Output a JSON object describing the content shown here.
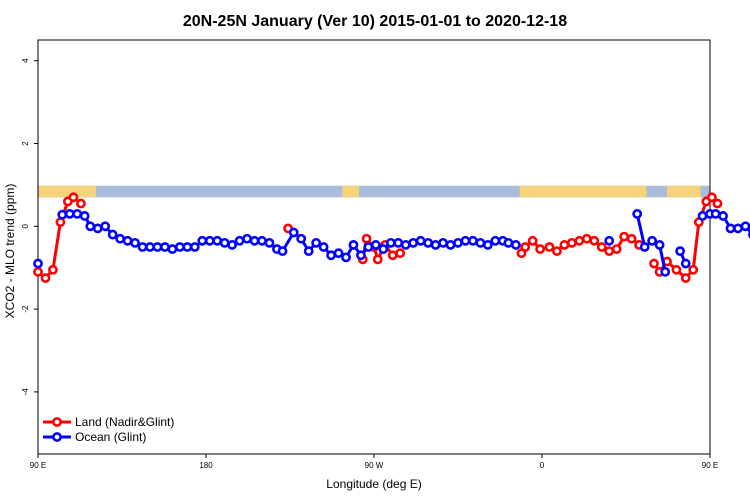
{
  "chart_data": {
    "type": "line",
    "title": "20N-25N January (Ver 10)   2015-01-01 to 2020-12-18",
    "xlabel": "Longitude (deg E)",
    "ylabel": "XCO2 - MLO trend (ppm)",
    "xlim": [
      90,
      450
    ],
    "ylim": [
      -5.5,
      4.5
    ],
    "x_ticks": [
      {
        "value": 90,
        "label": "90 E"
      },
      {
        "value": 180,
        "label": "180"
      },
      {
        "value": 270,
        "label": "90 W"
      },
      {
        "value": 360,
        "label": "0"
      },
      {
        "value": 450,
        "label": "90 E"
      },
      {
        "value": 540,
        "label": "180"
      }
    ],
    "y_ticks": [
      {
        "value": -4,
        "label": "-4"
      },
      {
        "value": -2,
        "label": "-2"
      },
      {
        "value": 0,
        "label": "0"
      },
      {
        "value": 2,
        "label": "2"
      },
      {
        "value": 4,
        "label": "4"
      }
    ],
    "land_mask": {
      "y_range": [
        0.7,
        0.98
      ],
      "ocean_color": "#a9bcd9",
      "land_color": "#f5d37a",
      "land_intervals": [
        [
          90,
          121
        ],
        [
          253,
          262
        ],
        [
          348,
          416
        ],
        [
          427,
          445
        ],
        [
          452,
          497
        ]
      ]
    },
    "legend": {
      "position": "bottom-left",
      "entries": [
        "Land (Nadir&Glint)",
        "Ocean (Glint)"
      ]
    },
    "series": [
      {
        "name": "Land (Nadir&Glint)",
        "color": "#ff0000",
        "segments": [
          [
            {
              "x": 90,
              "y": -1.1
            },
            {
              "x": 94,
              "y": -1.25
            },
            {
              "x": 98,
              "y": -1.05
            },
            {
              "x": 102,
              "y": 0.1
            },
            {
              "x": 106,
              "y": 0.6
            },
            {
              "x": 109,
              "y": 0.7
            },
            {
              "x": 113,
              "y": 0.55
            }
          ],
          [
            {
              "x": 224,
              "y": -0.05
            }
          ],
          [
            {
              "x": 264,
              "y": -0.8
            },
            {
              "x": 266,
              "y": -0.3
            },
            {
              "x": 270,
              "y": -0.5
            },
            {
              "x": 272,
              "y": -0.8
            },
            {
              "x": 276,
              "y": -0.45
            },
            {
              "x": 280,
              "y": -0.7
            },
            {
              "x": 284,
              "y": -0.65
            }
          ],
          [
            {
              "x": 349,
              "y": -0.65
            },
            {
              "x": 351,
              "y": -0.5
            },
            {
              "x": 355,
              "y": -0.35
            },
            {
              "x": 359,
              "y": -0.55
            },
            {
              "x": 364,
              "y": -0.5
            },
            {
              "x": 368,
              "y": -0.6
            },
            {
              "x": 372,
              "y": -0.45
            },
            {
              "x": 376,
              "y": -0.4
            },
            {
              "x": 380,
              "y": -0.35
            },
            {
              "x": 384,
              "y": -0.3
            },
            {
              "x": 388,
              "y": -0.35
            },
            {
              "x": 392,
              "y": -0.5
            },
            {
              "x": 396,
              "y": -0.6
            },
            {
              "x": 400,
              "y": -0.55
            },
            {
              "x": 404,
              "y": -0.25
            },
            {
              "x": 408,
              "y": -0.3
            },
            {
              "x": 412,
              "y": -0.45
            }
          ],
          [
            {
              "x": 420,
              "y": -0.9
            },
            {
              "x": 423,
              "y": -1.1
            },
            {
              "x": 427,
              "y": -0.85
            },
            {
              "x": 432,
              "y": -1.05
            },
            {
              "x": 437,
              "y": -1.25
            },
            {
              "x": 441,
              "y": -1.05
            },
            {
              "x": 444,
              "y": 0.1
            },
            {
              "x": 448,
              "y": 0.6
            },
            {
              "x": 451,
              "y": 0.7
            },
            {
              "x": 454,
              "y": 0.55
            }
          ]
        ]
      },
      {
        "name": "Ocean (Glint)",
        "color": "#0000ff",
        "segments": [
          [
            {
              "x": 90,
              "y": -0.9
            }
          ],
          [
            {
              "x": 103,
              "y": 0.28
            },
            {
              "x": 107,
              "y": 0.3
            },
            {
              "x": 111,
              "y": 0.3
            },
            {
              "x": 115,
              "y": 0.25
            },
            {
              "x": 118,
              "y": 0.0
            },
            {
              "x": 122,
              "y": -0.05
            },
            {
              "x": 126,
              "y": 0.0
            },
            {
              "x": 130,
              "y": -0.2
            },
            {
              "x": 134,
              "y": -0.3
            },
            {
              "x": 138,
              "y": -0.35
            },
            {
              "x": 142,
              "y": -0.4
            },
            {
              "x": 146,
              "y": -0.5
            },
            {
              "x": 150,
              "y": -0.5
            },
            {
              "x": 154,
              "y": -0.5
            },
            {
              "x": 158,
              "y": -0.5
            },
            {
              "x": 162,
              "y": -0.55
            },
            {
              "x": 166,
              "y": -0.5
            },
            {
              "x": 170,
              "y": -0.5
            },
            {
              "x": 174,
              "y": -0.5
            },
            {
              "x": 178,
              "y": -0.35
            },
            {
              "x": 182,
              "y": -0.35
            },
            {
              "x": 186,
              "y": -0.35
            },
            {
              "x": 190,
              "y": -0.4
            },
            {
              "x": 194,
              "y": -0.45
            },
            {
              "x": 198,
              "y": -0.35
            },
            {
              "x": 202,
              "y": -0.3
            },
            {
              "x": 206,
              "y": -0.35
            },
            {
              "x": 210,
              "y": -0.35
            },
            {
              "x": 214,
              "y": -0.4
            },
            {
              "x": 218,
              "y": -0.55
            },
            {
              "x": 221,
              "y": -0.6
            },
            {
              "x": 227,
              "y": -0.15
            },
            {
              "x": 231,
              "y": -0.3
            },
            {
              "x": 235,
              "y": -0.6
            },
            {
              "x": 239,
              "y": -0.4
            },
            {
              "x": 243,
              "y": -0.5
            },
            {
              "x": 247,
              "y": -0.7
            },
            {
              "x": 251,
              "y": -0.65
            },
            {
              "x": 255,
              "y": -0.75
            },
            {
              "x": 259,
              "y": -0.45
            },
            {
              "x": 263,
              "y": -0.7
            },
            {
              "x": 267,
              "y": -0.5
            },
            {
              "x": 271,
              "y": -0.45
            },
            {
              "x": 275,
              "y": -0.55
            },
            {
              "x": 279,
              "y": -0.4
            },
            {
              "x": 283,
              "y": -0.4
            },
            {
              "x": 287,
              "y": -0.45
            },
            {
              "x": 291,
              "y": -0.4
            },
            {
              "x": 295,
              "y": -0.35
            },
            {
              "x": 299,
              "y": -0.4
            },
            {
              "x": 303,
              "y": -0.45
            },
            {
              "x": 307,
              "y": -0.4
            },
            {
              "x": 311,
              "y": -0.45
            },
            {
              "x": 315,
              "y": -0.4
            },
            {
              "x": 319,
              "y": -0.35
            },
            {
              "x": 323,
              "y": -0.35
            },
            {
              "x": 327,
              "y": -0.4
            },
            {
              "x": 331,
              "y": -0.45
            },
            {
              "x": 335,
              "y": -0.35
            },
            {
              "x": 339,
              "y": -0.35
            },
            {
              "x": 342,
              "y": -0.4
            },
            {
              "x": 346,
              "y": -0.45
            }
          ],
          [
            {
              "x": 396,
              "y": -0.35
            }
          ],
          [
            {
              "x": 411,
              "y": 0.3
            },
            {
              "x": 415,
              "y": -0.5
            },
            {
              "x": 419,
              "y": -0.35
            },
            {
              "x": 423,
              "y": -0.45
            },
            {
              "x": 426,
              "y": -1.1
            }
          ],
          [
            {
              "x": 434,
              "y": -0.6
            },
            {
              "x": 437,
              "y": -0.9
            }
          ],
          [
            {
              "x": 446,
              "y": 0.25
            },
            {
              "x": 450,
              "y": 0.3
            },
            {
              "x": 453,
              "y": 0.3
            },
            {
              "x": 457,
              "y": 0.25
            },
            {
              "x": 461,
              "y": -0.05
            },
            {
              "x": 465,
              "y": -0.05
            },
            {
              "x": 469,
              "y": 0.0
            },
            {
              "x": 473,
              "y": -0.2
            },
            {
              "x": 477,
              "y": -0.3
            },
            {
              "x": 481,
              "y": -0.35
            },
            {
              "x": 485,
              "y": -0.4
            },
            {
              "x": 489,
              "y": -0.5
            },
            {
              "x": 493,
              "y": -0.5
            },
            {
              "x": 497,
              "y": -0.5
            },
            {
              "x": 500,
              "y": -0.5
            }
          ]
        ]
      }
    ]
  }
}
